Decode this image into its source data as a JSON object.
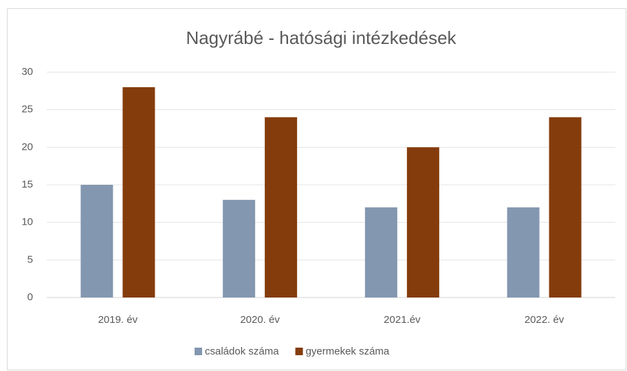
{
  "chart_data": {
    "type": "bar",
    "title": "Nagyrábé - hatósági intézkedések",
    "categories": [
      "2019. év",
      "2020. év",
      "2021.év",
      "2022. év"
    ],
    "series": [
      {
        "name": "családok száma",
        "color": "#8497b0",
        "values": [
          15,
          13,
          12,
          12
        ]
      },
      {
        "name": "gyermekek száma",
        "color": "#843c0c",
        "values": [
          28,
          24,
          20,
          24
        ]
      }
    ],
    "ylim": [
      0,
      30
    ],
    "yticks": [
      0,
      5,
      10,
      15,
      20,
      25,
      30
    ],
    "grid": true,
    "legend": "bottom"
  }
}
